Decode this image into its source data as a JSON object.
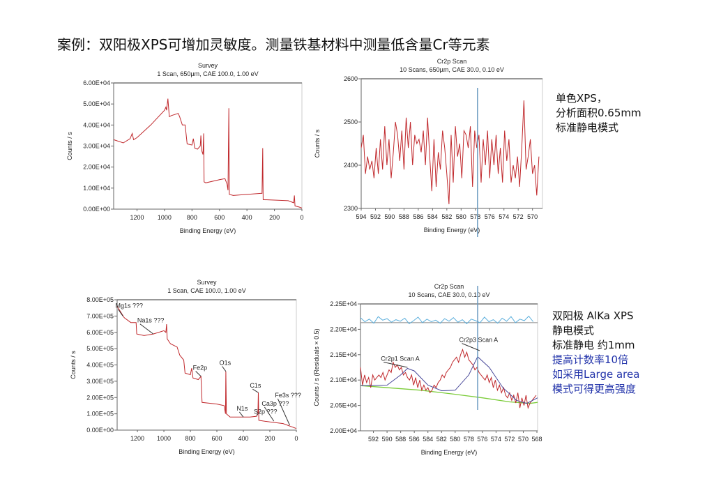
{
  "slide": {
    "title": "案例：双阳极XPS可增加灵敏度。测量铁基材料中测量低含量Cr等元素",
    "note_top": [
      "单色XPS，",
      "分析面积0.65mm",
      "标准静电模式"
    ],
    "note_bottom": [
      "双阳极 AlKa XPS",
      "静电模式",
      "标准静电 约1mm"
    ],
    "note_bottom_blue": [
      "提高计数率10倍",
      "如采用Large area",
      "模式可得更高强度"
    ]
  },
  "chart_data": [
    {
      "type": "line",
      "title": "Survey",
      "subtitle": "1 Scan,  650µm,  CAE 100.0,  1.00 eV",
      "xlabel": "Binding Energy (eV)",
      "ylabel": "Counts / s",
      "xlim": [
        1370,
        0
      ],
      "ylim": [
        0,
        60000
      ],
      "xticks": [
        1200,
        1000,
        800,
        600,
        400,
        200,
        0
      ],
      "xtick_labels": [
        "1200",
        "1000",
        "800",
        "600",
        "400",
        "200",
        "0"
      ],
      "yticks": [
        0,
        10000,
        20000,
        30000,
        40000,
        50000,
        60000
      ],
      "ytick_labels": [
        "0.00E+00",
        "1.00E+04",
        "2.00E+04",
        "3.00E+04",
        "4.00E+04",
        "5.00E+04",
        "6.00E+04"
      ],
      "color": "#c0282c",
      "points": [
        [
          1370,
          33000
        ],
        [
          1300,
          31500
        ],
        [
          1250,
          33500
        ],
        [
          1235,
          36000
        ],
        [
          1225,
          33000
        ],
        [
          1200,
          34000
        ],
        [
          1100,
          40000
        ],
        [
          1000,
          47000
        ],
        [
          990,
          48500
        ],
        [
          985,
          47000
        ],
        [
          975,
          52500
        ],
        [
          965,
          44000
        ],
        [
          950,
          44500
        ],
        [
          900,
          45500
        ],
        [
          890,
          44000
        ],
        [
          870,
          40000
        ],
        [
          850,
          40000
        ],
        [
          835,
          31000
        ],
        [
          800,
          30500
        ],
        [
          790,
          33500
        ],
        [
          780,
          29000
        ],
        [
          760,
          28500
        ],
        [
          740,
          30000
        ],
        [
          735,
          35000
        ],
        [
          730,
          28000
        ],
        [
          720,
          26000
        ],
        [
          715,
          36000
        ],
        [
          712,
          13000
        ],
        [
          700,
          12500
        ],
        [
          600,
          14000
        ],
        [
          560,
          14500
        ],
        [
          545,
          12000
        ],
        [
          538,
          9000
        ],
        [
          532,
          48000
        ],
        [
          528,
          7000
        ],
        [
          500,
          6500
        ],
        [
          300,
          7500
        ],
        [
          290,
          7500
        ],
        [
          285,
          29000
        ],
        [
          282,
          4500
        ],
        [
          100,
          4000
        ],
        [
          60,
          3000
        ],
        [
          55,
          6500
        ],
        [
          50,
          1500
        ],
        [
          20,
          1000
        ],
        [
          0,
          500
        ]
      ]
    },
    {
      "type": "line",
      "title": "Cr2p Scan",
      "subtitle": "10 Scans,  650µm,  CAE 30.0,  0.10 eV",
      "xlabel": "Binding Energy (eV)",
      "ylabel": "Counts / s",
      "xlim": [
        594,
        568.6
      ],
      "ylim": [
        2300,
        2600
      ],
      "xticks": [
        594,
        592,
        590,
        588,
        586,
        584,
        582,
        580,
        578,
        576,
        574,
        572,
        570
      ],
      "xtick_labels": [
        "594",
        "592",
        "590",
        "588",
        "586",
        "584",
        "582",
        "580",
        "578",
        "576",
        "574",
        "572",
        "570"
      ],
      "yticks": [
        2300,
        2400,
        2500,
        2600
      ],
      "ytick_labels": [
        "2300",
        "2400",
        "2500",
        "2600"
      ],
      "color": "#c0282c",
      "marker_line_x": 577.7,
      "marker_color": "#6a9ac0",
      "x_start": 594,
      "x_step": -0.3,
      "values": [
        2440,
        2470,
        2380,
        2420,
        2390,
        2410,
        2370,
        2440,
        2380,
        2460,
        2390,
        2490,
        2400,
        2460,
        2370,
        2430,
        2500,
        2470,
        2410,
        2480,
        2390,
        2510,
        2440,
        2500,
        2400,
        2470,
        2450,
        2460,
        2430,
        2480,
        2400,
        2510,
        2420,
        2340,
        2460,
        2350,
        2430,
        2390,
        2480,
        2440,
        2380,
        2310,
        2470,
        2360,
        2490,
        2420,
        2450,
        2370,
        2480,
        2470,
        2440,
        2490,
        2350,
        2480,
        2440,
        2470,
        2360,
        2460,
        2400,
        2480,
        2370,
        2460,
        2400,
        2470,
        2380,
        2440,
        2360,
        2480,
        2410,
        2460,
        2360,
        2400,
        2370,
        2420,
        2350,
        2440,
        2550,
        2390,
        2420,
        2460,
        2380,
        2400,
        2330,
        2420
      ]
    },
    {
      "type": "line",
      "title": "Survey",
      "subtitle": "1 Scan,  CAE 100.0,  1.00 eV",
      "xlabel": "Binding Energy (eV)",
      "ylabel": "Counts / s",
      "xlim": [
        1353,
        0
      ],
      "ylim": [
        0,
        800000
      ],
      "xticks": [
        1200,
        1000,
        800,
        600,
        400,
        200,
        0
      ],
      "xtick_labels": [
        "1200",
        "1000",
        "800",
        "600",
        "400",
        "200",
        "0"
      ],
      "yticks": [
        0,
        100000,
        200000,
        300000,
        400000,
        500000,
        600000,
        700000,
        800000
      ],
      "ytick_labels": [
        "0.00E+00",
        "1.00E+05",
        "2.00E+05",
        "3.00E+05",
        "4.00E+05",
        "5.00E+05",
        "6.00E+05",
        "7.00E+05",
        "8.00E+05"
      ],
      "color": "#c0282c",
      "points": [
        [
          1353,
          760000
        ],
        [
          1300,
          690000
        ],
        [
          1250,
          660000
        ],
        [
          1210,
          660000
        ],
        [
          1205,
          590000
        ],
        [
          1150,
          580000
        ],
        [
          1080,
          590000
        ],
        [
          1000,
          610000
        ],
        [
          985,
          600000
        ],
        [
          980,
          650000
        ],
        [
          975,
          560000
        ],
        [
          950,
          530000
        ],
        [
          900,
          510000
        ],
        [
          880,
          460000
        ],
        [
          850,
          430000
        ],
        [
          840,
          350000
        ],
        [
          800,
          340000
        ],
        [
          790,
          380000
        ],
        [
          780,
          320000
        ],
        [
          740,
          310000
        ],
        [
          720,
          330000
        ],
        [
          712,
          170000
        ],
        [
          600,
          160000
        ],
        [
          545,
          150000
        ],
        [
          535,
          100000
        ],
        [
          532,
          360000
        ],
        [
          528,
          100000
        ],
        [
          500,
          80000
        ],
        [
          350,
          80000
        ],
        [
          300,
          85000
        ],
        [
          290,
          100000
        ],
        [
          287,
          230000
        ],
        [
          283,
          60000
        ],
        [
          200,
          50000
        ],
        [
          100,
          40000
        ],
        [
          0,
          10000
        ]
      ],
      "annotations": [
        {
          "text": "Mg1s ???",
          "x": 1310,
          "y": 700000,
          "tx": 1345,
          "ty": 750000
        },
        {
          "text": "Na1s ???",
          "x": 1080,
          "y": 590000,
          "tx": 1180,
          "ty": 660000
        },
        {
          "text": "Fe2p",
          "x": 720,
          "y": 330000,
          "tx": 760,
          "ty": 370000
        },
        {
          "text": "O1s",
          "x": 532,
          "y": 360000,
          "tx": 560,
          "ty": 400000
        },
        {
          "text": "N1s",
          "x": 400,
          "y": 80000,
          "tx": 430,
          "ty": 120000
        },
        {
          "text": "C1s",
          "x": 287,
          "y": 230000,
          "tx": 330,
          "ty": 260000
        },
        {
          "text": "S2p ???",
          "x": 290,
          "y": 100000,
          "tx": 300,
          "ty": 100000
        },
        {
          "text": "Ca3p ???",
          "x": 170,
          "y": 55000,
          "tx": 240,
          "ty": 90000
        },
        {
          "text": "Fe3s ???",
          "x": 50,
          "y": 30000,
          "tx": 140,
          "ty": 90000
        }
      ]
    },
    {
      "type": "line",
      "title": "Cr2p Scan",
      "subtitle": "10 Scans,  CAE 30.0,  0.10 eV",
      "xlabel": "Binding Energy (eV)",
      "ylabel": "Counts / s  (Residuals × 0.5)",
      "xlim": [
        593.9,
        567.9
      ],
      "ylim": [
        20000,
        22500
      ],
      "xticks": [
        592,
        590,
        588,
        586,
        584,
        582,
        580,
        578,
        576,
        574,
        572,
        570,
        568
      ],
      "xtick_labels": [
        "592",
        "590",
        "588",
        "586",
        "584",
        "582",
        "580",
        "578",
        "576",
        "574",
        "572",
        "570",
        "568"
      ],
      "yticks": [
        20000,
        20500,
        21000,
        21500,
        22000,
        22500
      ],
      "ytick_labels": [
        "2.00E+04",
        "2.05E+04",
        "2.10E+04",
        "2.15E+04",
        "2.20E+04",
        "2.25E+04"
      ],
      "color": "#c0282c",
      "fit_color": "#4a4a9a",
      "background_color": "#7ccc3a",
      "residual_color": "#5aaedc",
      "marker_line_x": 576.7,
      "marker_color": "#6a9ac0",
      "x_start": 593.9,
      "x_step": -0.3,
      "values": [
        21250,
        20900,
        21100,
        20950,
        21050,
        20850,
        21100,
        21000,
        21050,
        21100,
        21050,
        21150,
        21000,
        21100,
        21200,
        21150,
        21350,
        21250,
        21300,
        21200,
        21250,
        21100,
        21150,
        21050,
        21000,
        21100,
        20900,
        21050,
        20850,
        21000,
        20800,
        20900,
        20800,
        20850,
        20750,
        20800,
        20900,
        20850,
        20950,
        21000,
        21100,
        21050,
        21150,
        21200,
        21250,
        21350,
        21400,
        21450,
        21350,
        21500,
        21600,
        21450,
        21550,
        21400,
        21350,
        21300,
        21200,
        21250,
        21150,
        21100,
        21050,
        21000,
        21100,
        20950,
        21050,
        20850,
        21000,
        20800,
        20900,
        20750,
        20850,
        20700,
        20650,
        20750,
        20600,
        20700,
        20550,
        20750,
        20450,
        20650,
        20500,
        20700,
        20450,
        20550,
        20600,
        20650,
        20700
      ],
      "fit": [
        [
          593.9,
          20890
        ],
        [
          590,
          20900
        ],
        [
          588,
          21100
        ],
        [
          587,
          21230
        ],
        [
          586,
          21180
        ],
        [
          584,
          20900
        ],
        [
          582,
          20790
        ],
        [
          580,
          20800
        ],
        [
          578,
          21100
        ],
        [
          576.7,
          21460
        ],
        [
          575,
          21250
        ],
        [
          573,
          20850
        ],
        [
          571,
          20600
        ],
        [
          569.5,
          20540
        ],
        [
          567.9,
          20650
        ]
      ],
      "background": [
        [
          593.9,
          20890
        ],
        [
          585,
          20800
        ],
        [
          580,
          20720
        ],
        [
          576,
          20650
        ],
        [
          572,
          20570
        ],
        [
          569,
          20540
        ],
        [
          567.9,
          20560
        ]
      ],
      "residual_baseline": 22130,
      "residual_step": -0.65,
      "residuals": [
        22230,
        22150,
        22200,
        22120,
        22250,
        22180,
        22210,
        22140,
        22190,
        22160,
        22220,
        22110,
        22170,
        22240,
        22130,
        22200,
        22150,
        22180,
        22120,
        22210,
        22160,
        22230,
        22140,
        22190,
        22110,
        22200,
        22170,
        22130,
        22240,
        22150,
        22190,
        22120,
        22220,
        22160,
        22250,
        22130,
        22200,
        22170,
        22260,
        22150
      ],
      "annotations": [
        {
          "text": "Cr2p1 Scan A",
          "x": 587,
          "y": 21250,
          "tx": 590.5,
          "ty": 21380
        },
        {
          "text": "Cr2p3 Scan A",
          "x": 576.4,
          "y": 21580,
          "tx": 579,
          "ty": 21750
        }
      ]
    }
  ]
}
